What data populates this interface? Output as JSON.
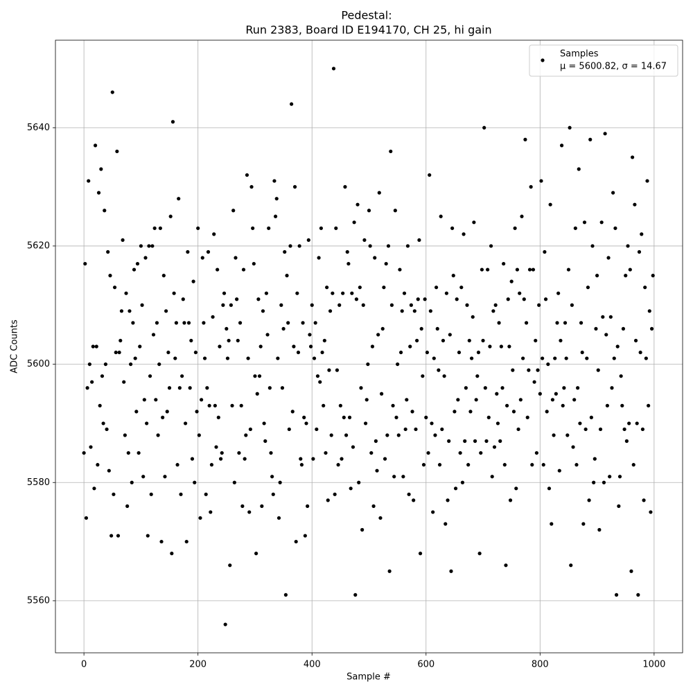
{
  "chart_data": {
    "type": "scatter",
    "title": "Pedestal:",
    "subtitle": "Run 2383, Board ID E194170, CH 25, hi gain",
    "x_label": "Sample #",
    "y_label": "ADC Counts",
    "xlim": [
      -50,
      1050
    ],
    "ylim": [
      5551.2,
      5654.8
    ],
    "xticks": [
      0,
      200,
      400,
      600,
      800,
      1000
    ],
    "yticks": [
      5560,
      5580,
      5600,
      5620,
      5640
    ],
    "grid": true,
    "legend": "upper right",
    "legend_note": "μ = 5600.82, σ = 14.67",
    "series": [
      {
        "name": "Samples",
        "color": "#000000",
        "x": [
          0,
          2,
          4,
          6,
          8,
          10,
          12,
          14,
          16,
          18,
          20,
          22,
          24,
          26,
          28,
          30,
          32,
          34,
          36,
          38,
          40,
          42,
          44,
          46,
          48,
          50,
          52,
          54,
          56,
          58,
          60,
          62,
          64,
          66,
          68,
          70,
          72,
          74,
          76,
          78,
          80,
          82,
          84,
          86,
          88,
          90,
          92,
          94,
          96,
          98,
          100,
          102,
          104,
          106,
          108,
          110,
          112,
          114,
          116,
          118,
          120,
          122,
          124,
          126,
          128,
          130,
          132,
          134,
          136,
          138,
          140,
          142,
          144,
          146,
          148,
          150,
          152,
          154,
          156,
          158,
          160,
          162,
          164,
          166,
          168,
          170,
          172,
          174,
          176,
          178,
          180,
          182,
          184,
          186,
          188,
          190,
          192,
          194,
          196,
          198,
          200,
          202,
          204,
          206,
          208,
          210,
          212,
          214,
          216,
          218,
          220,
          222,
          224,
          226,
          228,
          230,
          232,
          234,
          236,
          238,
          240,
          242,
          244,
          246,
          248,
          250,
          252,
          254,
          256,
          258,
          260,
          262,
          264,
          266,
          268,
          270,
          272,
          274,
          276,
          278,
          280,
          282,
          284,
          286,
          288,
          290,
          292,
          294,
          296,
          298,
          300,
          302,
          304,
          306,
          308,
          310,
          312,
          314,
          316,
          318,
          320,
          322,
          324,
          326,
          328,
          330,
          332,
          334,
          336,
          338,
          340,
          342,
          344,
          346,
          348,
          350,
          352,
          354,
          356,
          358,
          360,
          362,
          364,
          366,
          368,
          370,
          372,
          374,
          376,
          378,
          380,
          382,
          384,
          386,
          388,
          390,
          392,
          394,
          396,
          398,
          400,
          402,
          404,
          406,
          408,
          410,
          412,
          414,
          416,
          418,
          420,
          422,
          424,
          426,
          428,
          430,
          432,
          434,
          436,
          438,
          440,
          442,
          444,
          446,
          448,
          450,
          452,
          454,
          456,
          458,
          460,
          462,
          464,
          466,
          468,
          470,
          472,
          474,
          476,
          478,
          480,
          482,
          484,
          486,
          488,
          490,
          492,
          494,
          496,
          498,
          500,
          502,
          504,
          506,
          508,
          510,
          512,
          514,
          516,
          518,
          520,
          522,
          524,
          526,
          528,
          530,
          532,
          534,
          536,
          538,
          540,
          542,
          544,
          546,
          548,
          550,
          552,
          554,
          556,
          558,
          560,
          562,
          564,
          566,
          568,
          570,
          572,
          574,
          576,
          578,
          580,
          582,
          584,
          586,
          588,
          590,
          592,
          594,
          596,
          598,
          600,
          602,
          604,
          606,
          608,
          610,
          612,
          614,
          616,
          618,
          620,
          622,
          624,
          626,
          628,
          630,
          632,
          634,
          636,
          638,
          640,
          642,
          644,
          646,
          648,
          650,
          652,
          654,
          656,
          658,
          660,
          662,
          664,
          666,
          668,
          670,
          672,
          674,
          676,
          678,
          680,
          682,
          684,
          686,
          688,
          690,
          692,
          694,
          696,
          698,
          700,
          702,
          704,
          706,
          708,
          710,
          712,
          714,
          716,
          718,
          720,
          722,
          724,
          726,
          728,
          730,
          732,
          734,
          736,
          738,
          740,
          742,
          744,
          746,
          748,
          750,
          752,
          754,
          756,
          758,
          760,
          762,
          764,
          766,
          768,
          770,
          772,
          774,
          776,
          778,
          780,
          782,
          784,
          786,
          788,
          790,
          792,
          794,
          796,
          798,
          800,
          802,
          804,
          806,
          808,
          810,
          812,
          814,
          816,
          818,
          820,
          822,
          824,
          826,
          828,
          830,
          832,
          834,
          836,
          838,
          840,
          842,
          844,
          846,
          848,
          850,
          852,
          854,
          856,
          858,
          860,
          862,
          864,
          866,
          868,
          870,
          872,
          874,
          876,
          878,
          880,
          882,
          884,
          886,
          888,
          890,
          892,
          894,
          896,
          898,
          900,
          902,
          904,
          906,
          908,
          910,
          912,
          914,
          916,
          918,
          920,
          922,
          924,
          926,
          928,
          930,
          932,
          934,
          936,
          938,
          940,
          942,
          944,
          946,
          948,
          950,
          952,
          954,
          956,
          958,
          960,
          962,
          964,
          966,
          968,
          970,
          972,
          974,
          976,
          978,
          980,
          982,
          984,
          986,
          988,
          990,
          992,
          994,
          996,
          998
        ],
        "values": [
          5585,
          5617,
          5574,
          5596,
          5631,
          5600,
          5586,
          5597,
          5603,
          5579,
          5637,
          5603,
          5583,
          5629,
          5593,
          5633,
          5598,
          5590,
          5626,
          5600,
          5589,
          5619,
          5582,
          5615,
          5571,
          5646,
          5578,
          5613,
          5602,
          5636,
          5571,
          5602,
          5604,
          5609,
          5621,
          5597,
          5588,
          5612,
          5576,
          5585,
          5609,
          5600,
          5580,
          5607,
          5616,
          5601,
          5592,
          5617,
          5585,
          5603,
          5620,
          5610,
          5581,
          5594,
          5618,
          5590,
          5571,
          5620,
          5598,
          5578,
          5620,
          5605,
          5623,
          5594,
          5607,
          5588,
          5600,
          5623,
          5570,
          5591,
          5615,
          5581,
          5609,
          5592,
          5602,
          5596,
          5625,
          5568,
          5641,
          5612,
          5601,
          5607,
          5583,
          5628,
          5596,
          5578,
          5598,
          5611,
          5607,
          5590,
          5570,
          5619,
          5607,
          5596,
          5604,
          5584,
          5614,
          5580,
          5602,
          5592,
          5623,
          5588,
          5574,
          5594,
          5618,
          5607,
          5601,
          5578,
          5596,
          5619,
          5593,
          5575,
          5583,
          5608,
          5622,
          5593,
          5586,
          5616,
          5591,
          5603,
          5584,
          5585,
          5610,
          5612,
          5556,
          5606,
          5601,
          5604,
          5566,
          5610,
          5593,
          5626,
          5580,
          5618,
          5611,
          5604,
          5585,
          5607,
          5593,
          5576,
          5616,
          5584,
          5588,
          5632,
          5601,
          5575,
          5589,
          5630,
          5623,
          5617,
          5598,
          5568,
          5595,
          5611,
          5598,
          5603,
          5576,
          5609,
          5590,
          5587,
          5612,
          5605,
          5623,
          5596,
          5585,
          5581,
          5578,
          5631,
          5625,
          5628,
          5601,
          5574,
          5580,
          5610,
          5596,
          5606,
          5619,
          5561,
          5615,
          5607,
          5589,
          5620,
          5644,
          5592,
          5603,
          5630,
          5570,
          5612,
          5602,
          5620,
          5584,
          5583,
          5607,
          5591,
          5571,
          5590,
          5576,
          5621,
          5605,
          5603,
          5610,
          5584,
          5601,
          5607,
          5589,
          5598,
          5618,
          5597,
          5623,
          5602,
          5593,
          5604,
          5585,
          5613,
          5577,
          5599,
          5609,
          5588,
          5612,
          5650,
          5578,
          5623,
          5599,
          5583,
          5610,
          5593,
          5584,
          5612,
          5591,
          5630,
          5588,
          5619,
          5617,
          5591,
          5579,
          5612,
          5586,
          5624,
          5561,
          5611,
          5627,
          5580,
          5613,
          5596,
          5572,
          5610,
          5621,
          5590,
          5594,
          5600,
          5626,
          5620,
          5585,
          5603,
          5576,
          5618,
          5587,
          5582,
          5605,
          5629,
          5574,
          5595,
          5606,
          5613,
          5584,
          5617,
          5588,
          5620,
          5565,
          5636,
          5610,
          5593,
          5581,
          5626,
          5591,
          5600,
          5588,
          5616,
          5602,
          5609,
          5581,
          5612,
          5589,
          5594,
          5620,
          5578,
          5603,
          5610,
          5592,
          5577,
          5609,
          5589,
          5604,
          5611,
          5621,
          5568,
          5606,
          5598,
          5583,
          5611,
          5591,
          5602,
          5585,
          5632,
          5609,
          5590,
          5575,
          5601,
          5588,
          5613,
          5606,
          5599,
          5583,
          5625,
          5589,
          5604,
          5598,
          5573,
          5612,
          5577,
          5587,
          5605,
          5565,
          5623,
          5615,
          5592,
          5579,
          5611,
          5594,
          5602,
          5585,
          5613,
          5580,
          5622,
          5587,
          5596,
          5610,
          5583,
          5604,
          5592,
          5601,
          5608,
          5624,
          5587,
          5594,
          5598,
          5602,
          5568,
          5585,
          5616,
          5604,
          5640,
          5596,
          5587,
          5616,
          5591,
          5603,
          5620,
          5581,
          5609,
          5586,
          5610,
          5595,
          5590,
          5607,
          5587,
          5603,
          5596,
          5617,
          5583,
          5566,
          5593,
          5611,
          5603,
          5577,
          5614,
          5599,
          5592,
          5623,
          5579,
          5616,
          5589,
          5612,
          5594,
          5625,
          5601,
          5611,
          5638,
          5607,
          5591,
          5599,
          5616,
          5630,
          5583,
          5616,
          5597,
          5604,
          5585,
          5599,
          5610,
          5595,
          5631,
          5601,
          5583,
          5619,
          5611,
          5592,
          5600,
          5579,
          5627,
          5573,
          5594,
          5588,
          5601,
          5595,
          5607,
          5612,
          5582,
          5604,
          5637,
          5593,
          5596,
          5607,
          5601,
          5588,
          5616,
          5640,
          5566,
          5610,
          5586,
          5594,
          5623,
          5583,
          5596,
          5633,
          5590,
          5607,
          5602,
          5573,
          5624,
          5589,
          5601,
          5613,
          5577,
          5638,
          5591,
          5620,
          5580,
          5584,
          5606,
          5615,
          5599,
          5572,
          5589,
          5624,
          5608,
          5580,
          5639,
          5605,
          5593,
          5618,
          5581,
          5608,
          5596,
          5629,
          5601,
          5623,
          5561,
          5603,
          5576,
          5581,
          5598,
          5593,
          5606,
          5589,
          5615,
          5587,
          5620,
          5590,
          5616,
          5565,
          5635,
          5583,
          5627,
          5604,
          5590,
          5561,
          5619,
          5602,
          5622,
          5589,
          5577,
          5613,
          5601,
          5631,
          5593,
          5609,
          5575,
          5606,
          5615
        ]
      }
    ]
  }
}
